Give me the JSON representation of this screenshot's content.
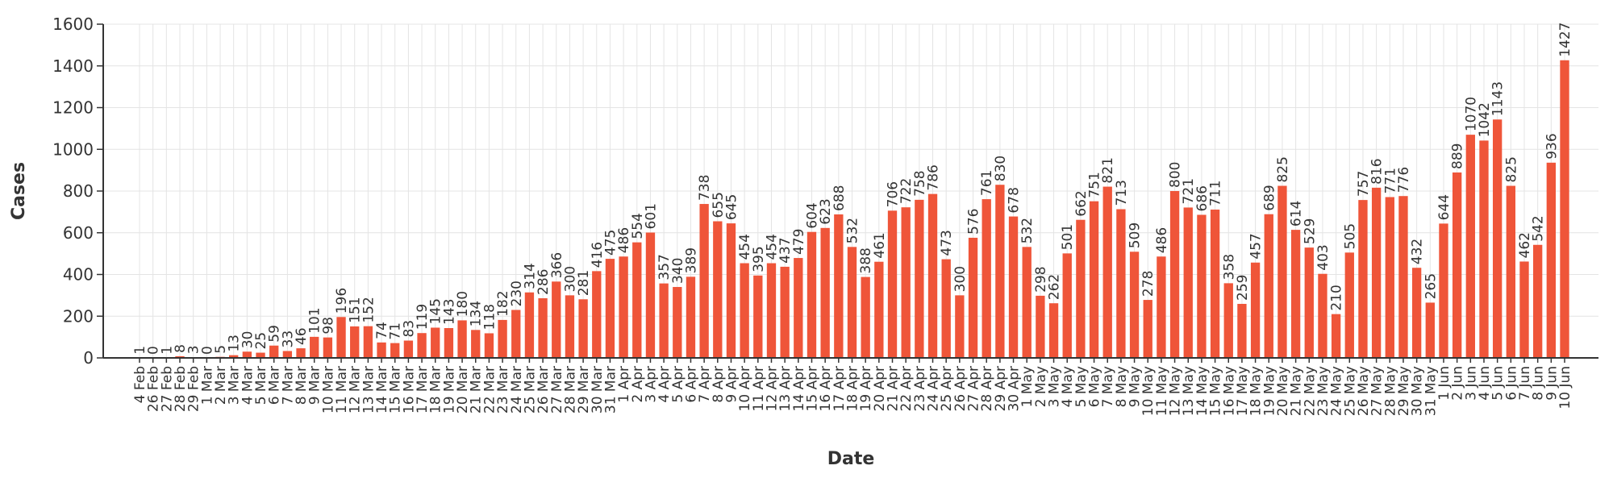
{
  "chart_data": {
    "type": "bar",
    "title": "",
    "xlabel": "Date",
    "ylabel": "Cases",
    "ylim": [
      0,
      1600
    ],
    "yticks": [
      "0",
      "200",
      "400",
      "600",
      "800",
      "1000",
      "1200",
      "1400",
      "1600"
    ],
    "grid": true,
    "legend": "none",
    "bar_color": "#ef5539",
    "categories": [
      "4 Feb",
      "26 Feb",
      "27 Feb",
      "28 Feb",
      "29 Feb",
      "1 Mar",
      "2 Mar",
      "3 Mar",
      "4 Mar",
      "5 Mar",
      "6 Mar",
      "7 Mar",
      "8 Mar",
      "9 Mar",
      "10 Mar",
      "11 Mar",
      "12 Mar",
      "13 Mar",
      "14 Mar",
      "15 Mar",
      "16 Mar",
      "17 Mar",
      "18 Mar",
      "19 Mar",
      "20 Mar",
      "21 Mar",
      "22 Mar",
      "23 Mar",
      "24 Mar",
      "25 Mar",
      "26 Mar",
      "27 Mar",
      "28 Mar",
      "29 Mar",
      "30 Mar",
      "31 Mar",
      "1 Apr",
      "2 Apr",
      "3 Apr",
      "4 Apr",
      "5 Apr",
      "6 Apr",
      "7 Apr",
      "8 Apr",
      "9 Apr",
      "10 Apr",
      "11 Apr",
      "12 Apr",
      "13 Apr",
      "14 Apr",
      "15 Apr",
      "16 Apr",
      "17 Apr",
      "18 Apr",
      "19 Apr",
      "20 Apr",
      "21 Apr",
      "22 Apr",
      "23 Apr",
      "24 Apr",
      "25 Apr",
      "26 Apr",
      "27 Apr",
      "28 Apr",
      "29 Apr",
      "30 Apr",
      "1 May",
      "2 May",
      "3 May",
      "4 May",
      "5 May",
      "6 May",
      "7 May",
      "8 May",
      "9 May",
      "10 May",
      "11 May",
      "12 May",
      "13 May",
      "14 May",
      "15 May",
      "16 May",
      "17 May",
      "18 May",
      "19 May",
      "20 May",
      "21 May",
      "22 May",
      "23 May",
      "24 May",
      "25 May",
      "26 May",
      "27 May",
      "28 May",
      "29 May",
      "30 May",
      "31 May",
      "1 Jun",
      "2 Jun",
      "3 Jun",
      "4 Jun",
      "5 Jun",
      "6 Jun",
      "7 Jun",
      "8 Jun",
      "9 Jun",
      "10 Jun"
    ],
    "values": [
      1,
      0,
      1,
      8,
      3,
      0,
      5,
      13,
      30,
      25,
      59,
      33,
      46,
      101,
      98,
      196,
      151,
      152,
      74,
      71,
      83,
      119,
      145,
      143,
      180,
      134,
      118,
      182,
      230,
      314,
      286,
      366,
      300,
      281,
      416,
      475,
      486,
      554,
      601,
      357,
      340,
      389,
      738,
      655,
      645,
      454,
      395,
      454,
      437,
      479,
      604,
      623,
      688,
      532,
      388,
      461,
      706,
      722,
      758,
      786,
      473,
      300,
      576,
      761,
      830,
      678,
      532,
      298,
      262,
      501,
      662,
      751,
      821,
      713,
      509,
      278,
      486,
      800,
      721,
      686,
      711,
      358,
      259,
      457,
      689,
      825,
      614,
      529,
      403,
      210,
      505,
      757,
      816,
      771,
      776,
      432,
      265,
      644,
      889,
      1070,
      1042,
      1143,
      825,
      462,
      542,
      936,
      1427
    ]
  }
}
